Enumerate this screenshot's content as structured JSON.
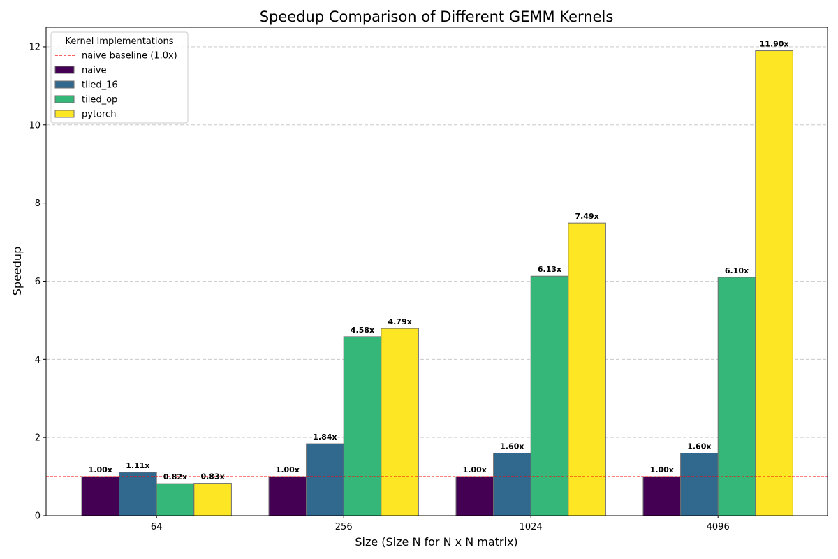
{
  "chart_data": {
    "type": "bar",
    "title": "Speedup Comparison of Different GEMM Kernels",
    "xlabel": "Size (Size N for N x N matrix)",
    "ylabel": "Speedup",
    "categories": [
      "64",
      "256",
      "1024",
      "4096"
    ],
    "ylim": [
      0,
      12.5
    ],
    "yticks": [
      0,
      2,
      4,
      6,
      8,
      10,
      12
    ],
    "grid": "y-dashed",
    "series": [
      {
        "name": "naive",
        "color": "#440154",
        "values": [
          1.0,
          1.0,
          1.0,
          1.0
        ],
        "labels": [
          "1.00x",
          "1.00x",
          "1.00x",
          "1.00x"
        ]
      },
      {
        "name": "tiled_16",
        "color": "#31688e",
        "values": [
          1.11,
          1.84,
          1.6,
          1.6
        ],
        "labels": [
          "1.11x",
          "1.84x",
          "1.60x",
          "1.60x"
        ]
      },
      {
        "name": "tiled_op",
        "color": "#35b779",
        "values": [
          0.82,
          4.58,
          6.13,
          6.1
        ],
        "labels": [
          "0.82x",
          "4.58x",
          "6.13x",
          "6.10x"
        ]
      },
      {
        "name": "pytorch",
        "color": "#fde725",
        "values": [
          0.83,
          4.79,
          7.49,
          11.9
        ],
        "labels": [
          "0.83x",
          "4.79x",
          "7.49x",
          "11.90x"
        ]
      }
    ],
    "baseline": {
      "value": 1.0,
      "label": "naive baseline (1.0x)",
      "color": "#ff0000"
    },
    "legend": {
      "title": "Kernel Implementations",
      "placement": "top-left"
    }
  }
}
